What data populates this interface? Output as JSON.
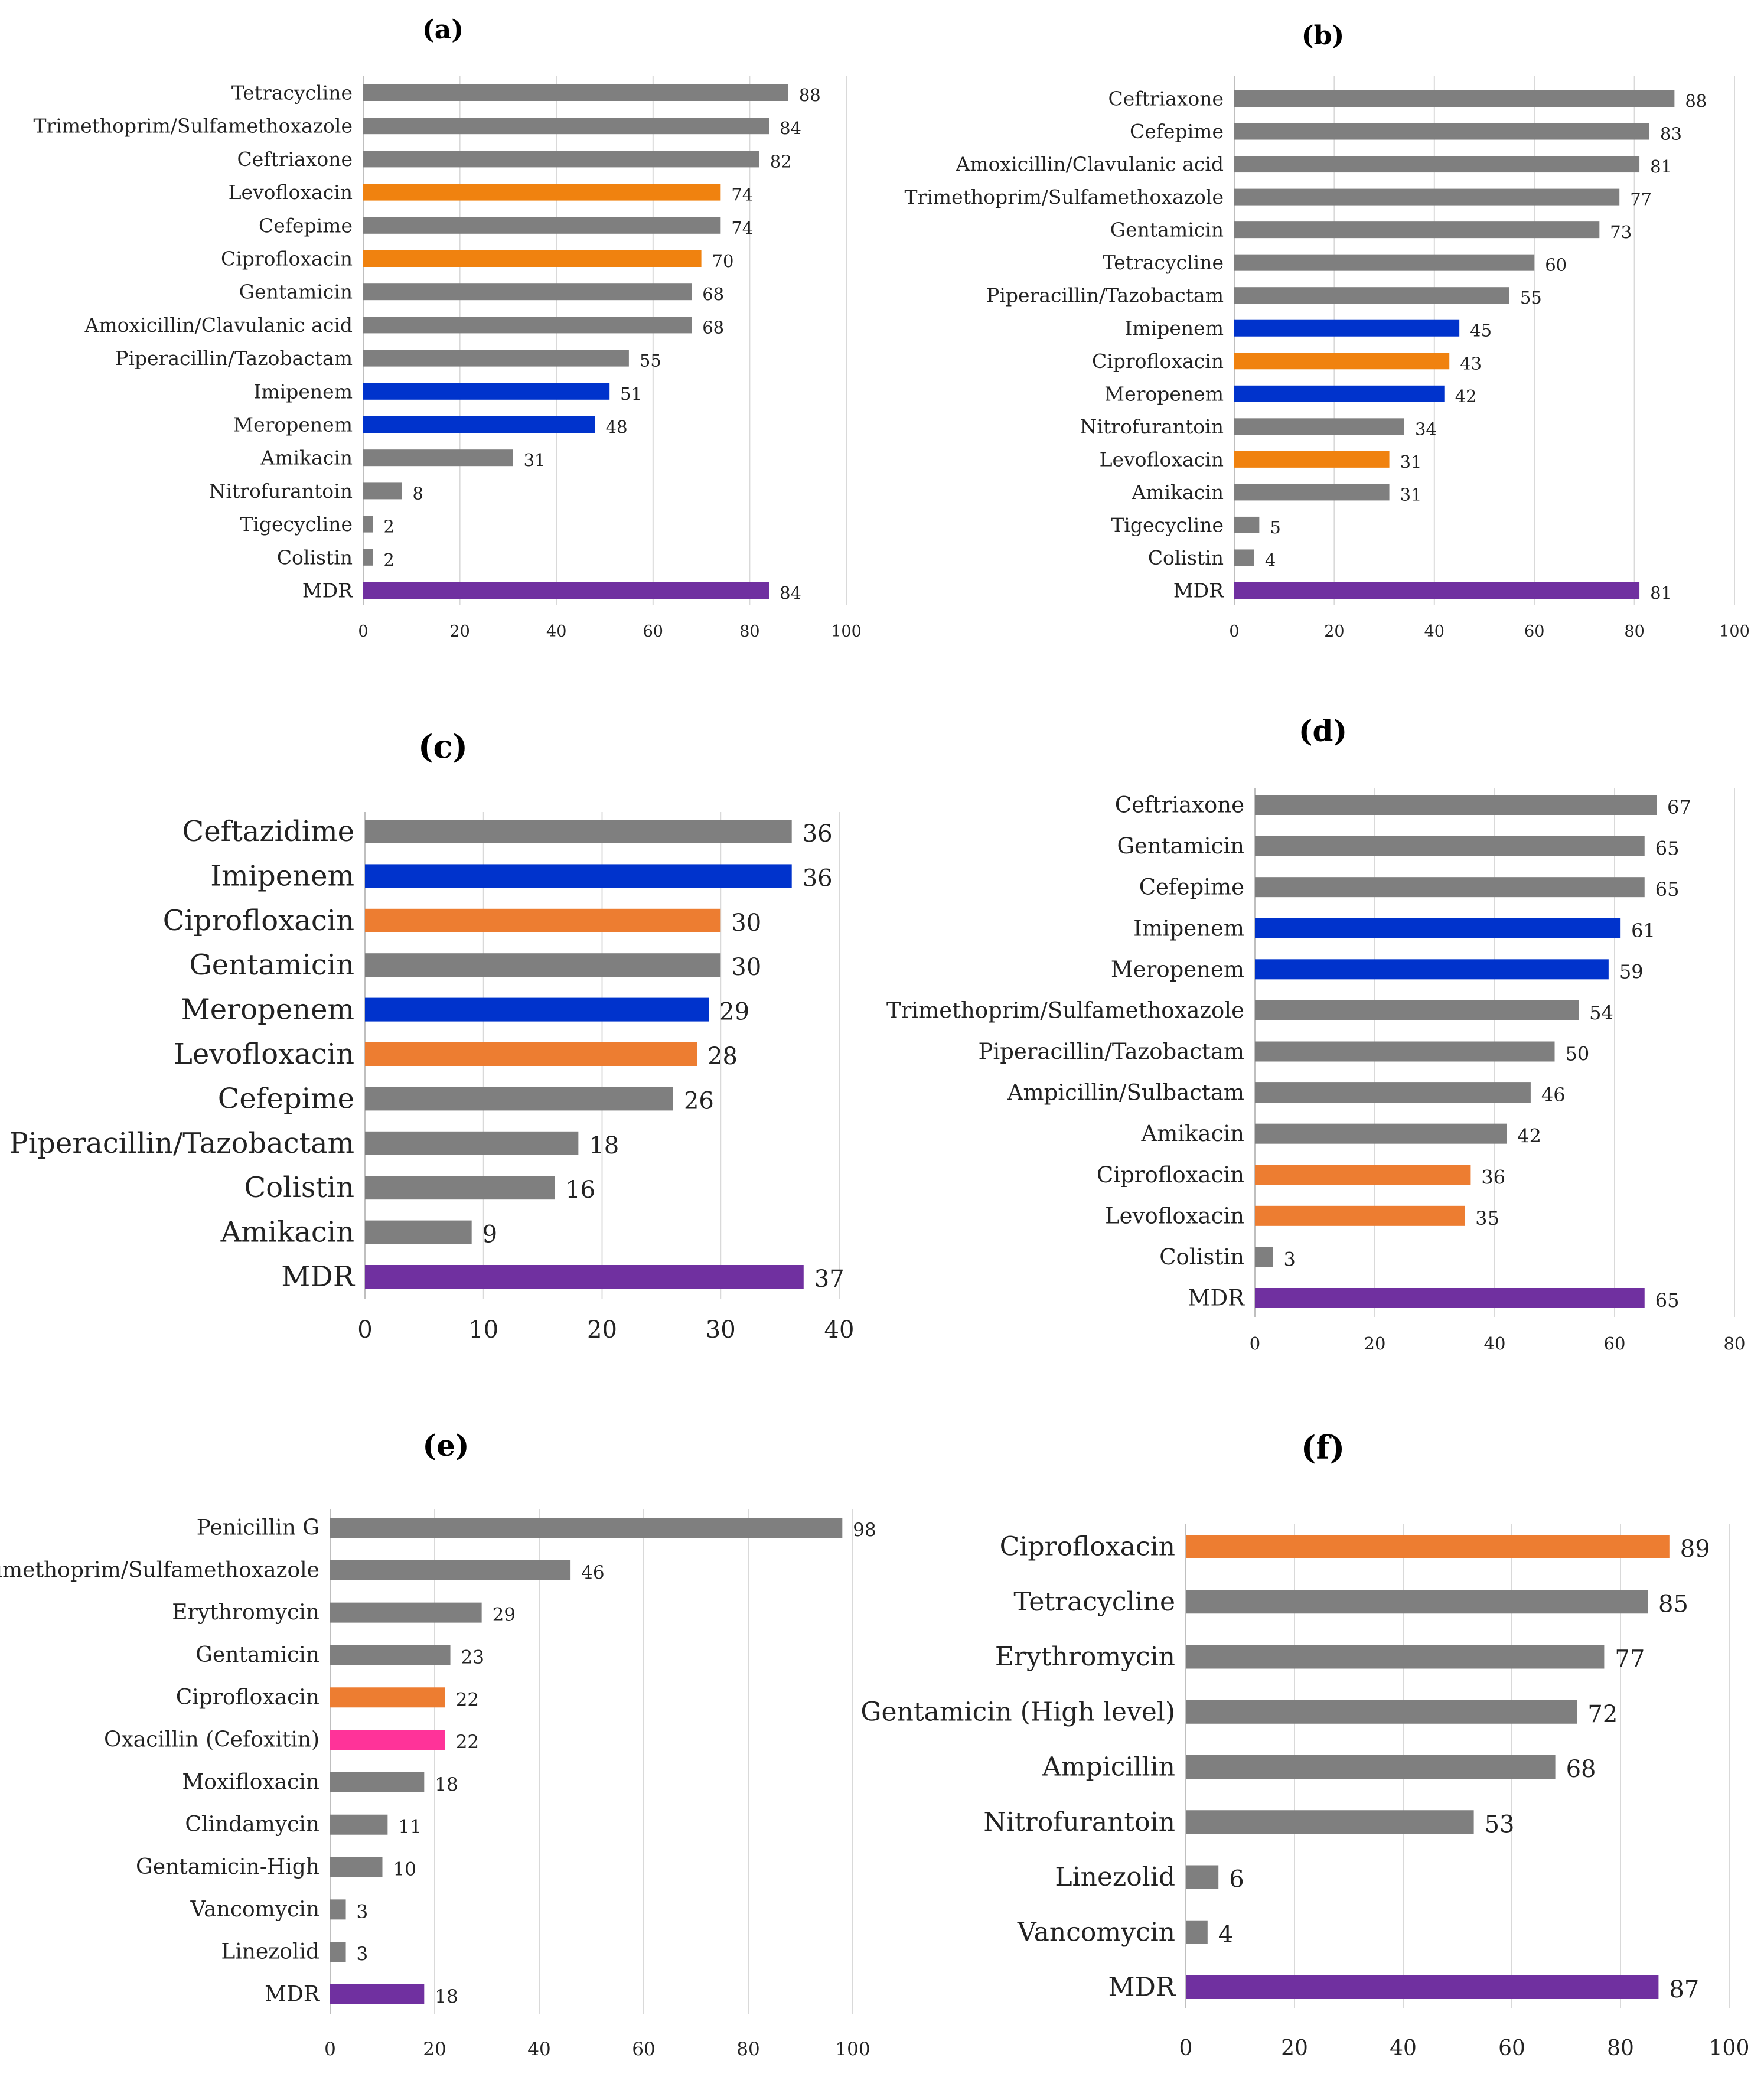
{
  "colors": {
    "gray": "#7f7f7f",
    "orange": "#f0820f",
    "orange_light": "#ed7d31",
    "blue": "#0033cc",
    "purple": "#7030a0",
    "pink": "#ff3399",
    "grid": "#d9d9d9"
  },
  "chart_data": [
    {
      "type": "bar",
      "orientation": "horizontal",
      "panel": "(a)",
      "categories": [
        "Tetracycline",
        "Trimethoprim/Sulfamethoxazole",
        "Ceftriaxone",
        "Levofloxacin",
        "Cefepime",
        "Ciprofloxacin",
        "Gentamicin",
        "Amoxicillin/Clavulanic acid",
        "Piperacillin/Tazobactam",
        "Imipenem",
        "Meropenem",
        "Amikacin",
        "Nitrofurantoin",
        "Tigecycline",
        "Colistin",
        "MDR"
      ],
      "values": [
        88,
        84,
        82,
        74,
        74,
        70,
        68,
        68,
        55,
        51,
        48,
        31,
        8,
        2,
        2,
        84
      ],
      "bar_colors": [
        "gray",
        "gray",
        "gray",
        "orange",
        "gray",
        "orange",
        "gray",
        "gray",
        "gray",
        "blue",
        "blue",
        "gray",
        "gray",
        "gray",
        "gray",
        "purple"
      ],
      "xlim": [
        0,
        100
      ],
      "xticks": [
        0,
        20,
        40,
        60,
        80,
        100
      ],
      "grid": true
    },
    {
      "type": "bar",
      "orientation": "horizontal",
      "panel": "(b)",
      "categories": [
        "Ceftriaxone",
        "Cefepime",
        "Amoxicillin/Clavulanic acid",
        "Trimethoprim/Sulfamethoxazole",
        "Gentamicin",
        "Tetracycline",
        "Piperacillin/Tazobactam",
        "Imipenem",
        "Ciprofloxacin",
        "Meropenem",
        "Nitrofurantoin",
        "Levofloxacin",
        "Amikacin",
        "Tigecycline",
        "Colistin",
        "MDR"
      ],
      "values": [
        88,
        83,
        81,
        77,
        73,
        60,
        55,
        45,
        43,
        42,
        34,
        31,
        31,
        5,
        4,
        81
      ],
      "bar_colors": [
        "gray",
        "gray",
        "gray",
        "gray",
        "gray",
        "gray",
        "gray",
        "blue",
        "orange",
        "blue",
        "gray",
        "orange",
        "gray",
        "gray",
        "gray",
        "purple"
      ],
      "xlim": [
        0,
        100
      ],
      "xticks": [
        0,
        20,
        40,
        60,
        80,
        100
      ],
      "grid": true
    },
    {
      "type": "bar",
      "orientation": "horizontal",
      "panel": "(c)",
      "categories": [
        "Ceftazidime",
        "Imipenem",
        "Ciprofloxacin",
        "Gentamicin",
        "Meropenem",
        "Levofloxacin",
        "Cefepime",
        "Piperacillin/Tazobactam",
        "Colistin",
        "Amikacin",
        "MDR"
      ],
      "values": [
        36,
        36,
        30,
        30,
        29,
        28,
        26,
        18,
        16,
        9,
        37
      ],
      "bar_colors": [
        "gray",
        "blue",
        "orange_light",
        "gray",
        "blue",
        "orange_light",
        "gray",
        "gray",
        "gray",
        "gray",
        "purple"
      ],
      "xlim": [
        0,
        40
      ],
      "xticks": [
        0,
        10,
        20,
        30,
        40
      ],
      "grid": true
    },
    {
      "type": "bar",
      "orientation": "horizontal",
      "panel": "(d)",
      "categories": [
        "Ceftriaxone",
        "Gentamicin",
        "Cefepime",
        "Imipenem",
        "Meropenem",
        "Trimethoprim/Sulfamethoxazole",
        "Piperacillin/Tazobactam",
        "Ampicillin/Sulbactam",
        "Amikacin",
        "Ciprofloxacin",
        "Levofloxacin",
        "Colistin",
        "MDR"
      ],
      "values": [
        67,
        65,
        65,
        61,
        59,
        54,
        50,
        46,
        42,
        36,
        35,
        3,
        65
      ],
      "bar_colors": [
        "gray",
        "gray",
        "gray",
        "blue",
        "blue",
        "gray",
        "gray",
        "gray",
        "gray",
        "orange_light",
        "orange_light",
        "gray",
        "purple"
      ],
      "xlim": [
        0,
        80
      ],
      "xticks": [
        0,
        20,
        40,
        60,
        80
      ],
      "grid": true
    },
    {
      "type": "bar",
      "orientation": "horizontal",
      "panel": "(e)",
      "categories": [
        "Penicillin G",
        "Trimethoprim/Sulfamethoxazole",
        "Erythromycin",
        "Gentamicin",
        "Ciprofloxacin",
        "Oxacillin (Cefoxitin)",
        "Moxifloxacin",
        "Clindamycin",
        "Gentamicin-High",
        "Vancomycin",
        "Linezolid",
        "MDR"
      ],
      "values": [
        98,
        46,
        29,
        23,
        22,
        22,
        18,
        11,
        10,
        3,
        3,
        18
      ],
      "bar_colors": [
        "gray",
        "gray",
        "gray",
        "gray",
        "orange_light",
        "pink",
        "gray",
        "gray",
        "gray",
        "gray",
        "gray",
        "purple"
      ],
      "xlim": [
        0,
        100
      ],
      "xticks": [
        0,
        20,
        40,
        60,
        80,
        100
      ],
      "grid": true
    },
    {
      "type": "bar",
      "orientation": "horizontal",
      "panel": "(f)",
      "categories": [
        "Ciprofloxacin",
        "Tetracycline",
        "Erythromycin",
        "Gentamicin (High level)",
        "Ampicillin",
        "Nitrofurantoin",
        "Linezolid",
        "Vancomycin",
        "MDR"
      ],
      "values": [
        89,
        85,
        77,
        72,
        68,
        53,
        6,
        4,
        87
      ],
      "bar_colors": [
        "orange_light",
        "gray",
        "gray",
        "gray",
        "gray",
        "gray",
        "gray",
        "gray",
        "purple"
      ],
      "xlim": [
        0,
        100
      ],
      "xticks": [
        0,
        20,
        40,
        60,
        80,
        100
      ],
      "grid": true
    }
  ]
}
